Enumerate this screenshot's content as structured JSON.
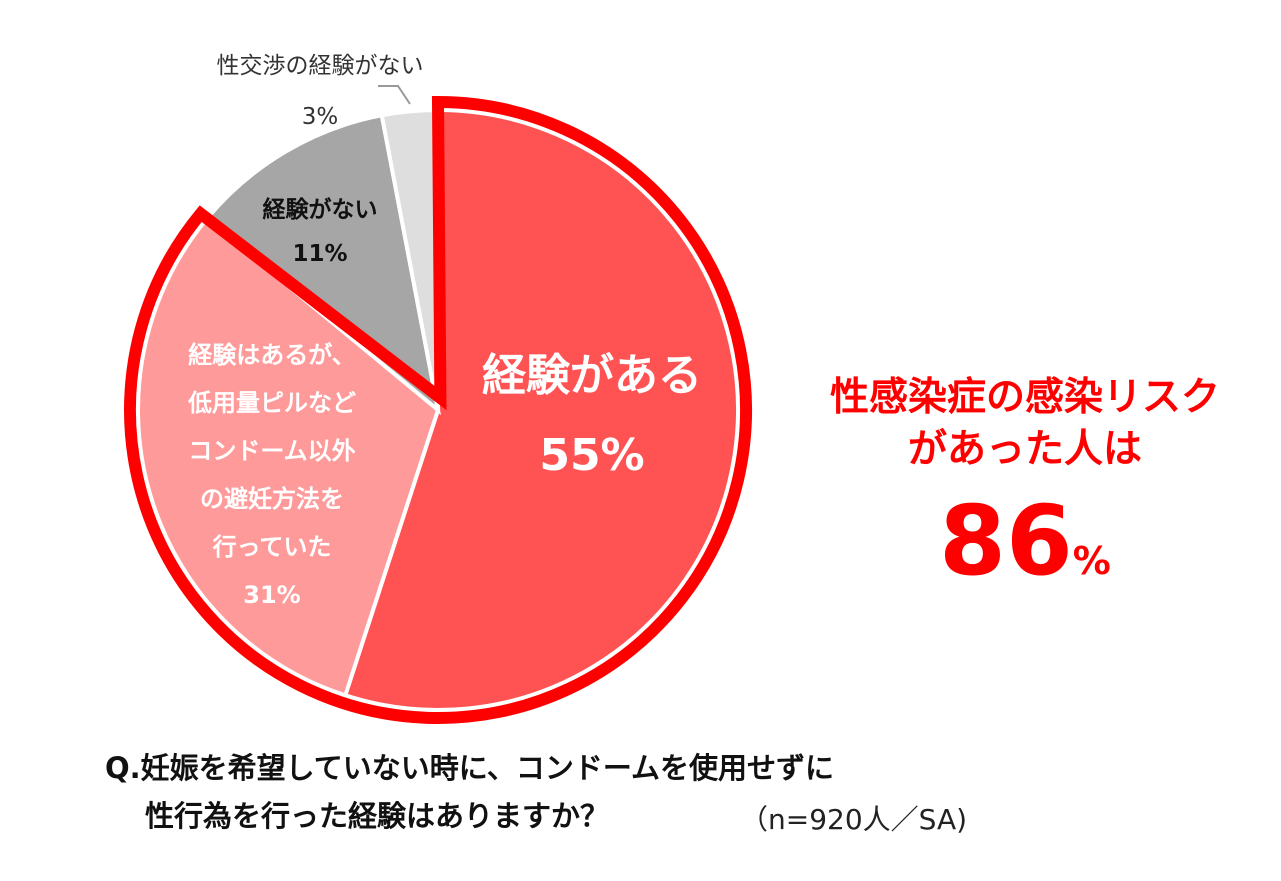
{
  "chart_data": {
    "type": "pie",
    "slices": [
      {
        "label_lines": [
          "経験がある"
        ],
        "value": 55,
        "value_label": "55%",
        "color": "#ff5252"
      },
      {
        "label_lines": [
          "経験はあるが、",
          "低用量ピルなど",
          "コンドーム以外",
          "の避妊方法を",
          "行っていた"
        ],
        "value": 31,
        "value_label": "31%",
        "color": "#ff9a9a"
      },
      {
        "label_lines": [
          "経験がない"
        ],
        "value": 11,
        "value_label": "11%",
        "color": "#a6a6a6"
      },
      {
        "label_lines": [
          "性交渉の経験がない"
        ],
        "value": 3,
        "value_label": "3%",
        "color": "#dedede"
      }
    ],
    "highlight_color": "#ff0000"
  },
  "callout": {
    "line1": "性感染症の感染リスク",
    "line2": "があった人は",
    "number": "86",
    "unit": "%"
  },
  "question": {
    "line1": "Q.妊娠を希望していない時に、コンドームを使用せずに",
    "line2": "性行為を行った経験はありますか？"
  },
  "sample": "（n=920人／SA)"
}
